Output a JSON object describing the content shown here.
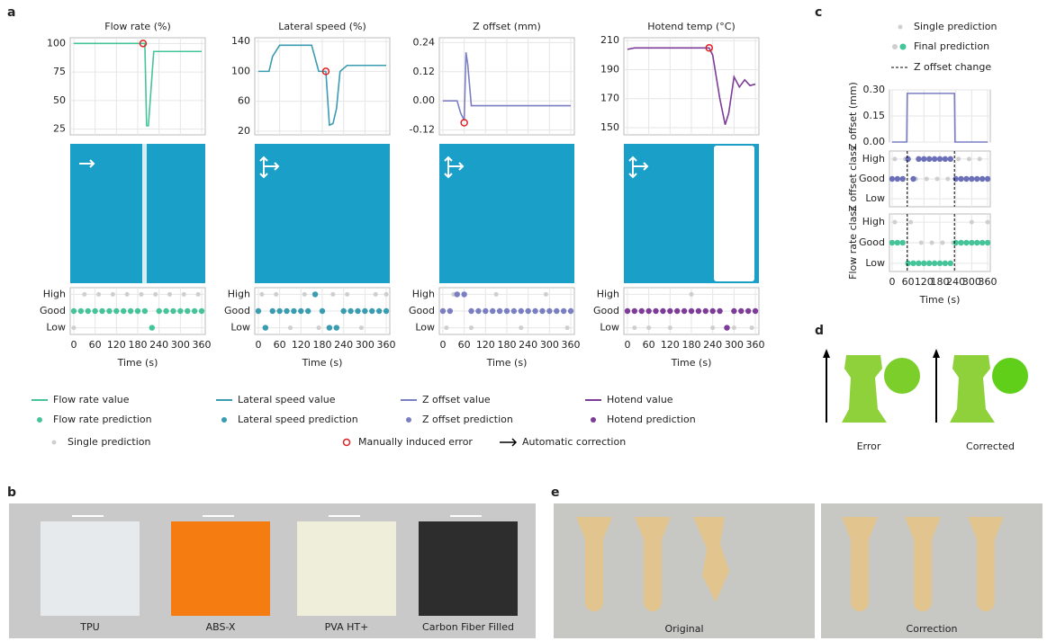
{
  "panel_labels": [
    "a",
    "b",
    "c",
    "d",
    "e"
  ],
  "legend_a": [
    "Single prediction",
    "Manually induced error",
    "Automatic correction"
  ],
  "legend_c": [
    "Single prediction",
    "Final prediction",
    "Z offset change"
  ],
  "b_captions": [
    "TPU",
    "ABS-X",
    "PVA HT+",
    "Carbon Fiber Filled"
  ],
  "d_captions": [
    "Error",
    "Corrected"
  ],
  "e_captions": [
    "Original",
    "Correction"
  ],
  "chart_data": [
    {
      "type": "line",
      "title": "Flow rate (%)",
      "xlim": [
        -10,
        370
      ],
      "xticks": [
        0,
        60,
        120,
        180,
        240,
        300,
        360
      ],
      "show_xtick_labels": false,
      "ylim": [
        20,
        105
      ],
      "yticks": [
        25,
        50,
        75,
        100
      ],
      "grid": true,
      "series": [
        {
          "name": "Flow rate value",
          "color": "#45c49a",
          "x": [
            0,
            195,
            200,
            205,
            210,
            225,
            230,
            360
          ],
          "values": [
            100,
            100,
            100,
            28,
            28,
            93,
            93,
            93
          ]
        }
      ],
      "error_marker": {
        "x": 195,
        "y": 100
      }
    },
    {
      "type": "line",
      "title": "Lateral speed (%)",
      "xlim": [
        -10,
        370
      ],
      "xticks": [
        0,
        60,
        120,
        180,
        240,
        300,
        360
      ],
      "show_xtick_labels": false,
      "ylim": [
        15,
        145
      ],
      "yticks": [
        20,
        60,
        100,
        140
      ],
      "grid": true,
      "series": [
        {
          "name": "Lateral speed value",
          "color": "#3a9cb0",
          "x": [
            0,
            30,
            40,
            60,
            150,
            170,
            190,
            200,
            210,
            220,
            230,
            250,
            280,
            300,
            360
          ],
          "values": [
            100,
            100,
            120,
            135,
            135,
            100,
            100,
            28,
            30,
            50,
            100,
            108,
            108,
            108,
            108
          ]
        }
      ],
      "error_marker": {
        "x": 190,
        "y": 100
      }
    },
    {
      "type": "line",
      "title": "Z offset (mm)",
      "xlim": [
        -10,
        370
      ],
      "xticks": [
        0,
        60,
        120,
        180,
        240,
        300,
        360
      ],
      "show_xtick_labels": false,
      "ylim": [
        -0.14,
        0.26
      ],
      "yticks": [
        -0.12,
        {
          "value": 0,
          "label": "0.00"
        },
        0.12,
        0.24
      ],
      "grid": true,
      "series": [
        {
          "name": "Z offset value",
          "color": "#7a7ec2",
          "x": [
            0,
            40,
            50,
            60,
            65,
            70,
            80,
            360
          ],
          "values": [
            0,
            0,
            -0.05,
            -0.08,
            0.2,
            0.15,
            -0.02,
            -0.02
          ]
        }
      ],
      "error_marker": {
        "x": 60,
        "y": -0.09
      }
    },
    {
      "type": "line",
      "title": "Hotend temp (°C)",
      "xlim": [
        -10,
        370
      ],
      "xticks": [
        0,
        60,
        120,
        180,
        240,
        300,
        360
      ],
      "show_xtick_labels": false,
      "ylim": [
        145,
        212
      ],
      "yticks": [
        150,
        170,
        190,
        210
      ],
      "grid": true,
      "series": [
        {
          "name": "Hotend value",
          "color": "#7d3c98",
          "x": [
            0,
            20,
            230,
            240,
            260,
            275,
            285,
            300,
            315,
            330,
            345,
            360
          ],
          "values": [
            204,
            205,
            205,
            200,
            170,
            152,
            160,
            185,
            178,
            183,
            179,
            180
          ]
        }
      ],
      "error_marker": {
        "x": 230,
        "y": 205
      }
    },
    {
      "type": "class",
      "xlabel": "Time (s)",
      "xlim": [
        -10,
        370
      ],
      "xticks": [
        0,
        60,
        120,
        180,
        240,
        300,
        360
      ],
      "show_xtick_labels": true,
      "ylim": [
        -0.4,
        2.4
      ],
      "yticks": [
        {
          "value": 0,
          "label": "Low"
        },
        {
          "value": 1,
          "label": "Good"
        },
        {
          "value": 2,
          "label": "High"
        }
      ],
      "series": [
        {
          "name": "Flow rate prediction",
          "color": "#45c49a",
          "x": [
            0,
            20,
            40,
            60,
            80,
            100,
            120,
            140,
            160,
            180,
            200,
            220,
            240,
            260,
            280,
            300,
            320,
            340,
            360
          ],
          "values": [
            1,
            1,
            1,
            1,
            1,
            1,
            1,
            1,
            1,
            1,
            1,
            0,
            1,
            1,
            1,
            1,
            1,
            1,
            1
          ]
        }
      ],
      "single": {
        "color": "#cfcfcf",
        "x": [
          0,
          30,
          70,
          110,
          150,
          190,
          230,
          270,
          310,
          350
        ],
        "values": [
          0,
          2,
          2,
          2,
          2,
          2,
          2,
          2,
          2,
          2
        ]
      }
    },
    {
      "type": "class",
      "xlabel": "Time (s)",
      "xlim": [
        -10,
        370
      ],
      "xticks": [
        0,
        60,
        120,
        180,
        240,
        300,
        360
      ],
      "show_xtick_labels": true,
      "ylim": [
        -0.4,
        2.4
      ],
      "yticks": [
        {
          "value": 0,
          "label": "Low"
        },
        {
          "value": 1,
          "label": "Good"
        },
        {
          "value": 2,
          "label": "High"
        }
      ],
      "series": [
        {
          "name": "Lateral speed prediction",
          "color": "#3a9cb0",
          "x": [
            0,
            20,
            40,
            60,
            80,
            100,
            120,
            140,
            160,
            180,
            200,
            220,
            240,
            260,
            280,
            300,
            320,
            340,
            360
          ],
          "values": [
            1,
            0,
            1,
            1,
            1,
            1,
            1,
            1,
            2,
            1,
            0,
            0,
            1,
            1,
            1,
            1,
            1,
            1,
            1
          ]
        }
      ],
      "single": {
        "color": "#cfcfcf",
        "x": [
          10,
          50,
          90,
          130,
          170,
          210,
          250,
          290,
          330,
          360
        ],
        "values": [
          2,
          2,
          0,
          2,
          0,
          2,
          2,
          0,
          2,
          2
        ]
      }
    },
    {
      "type": "class",
      "xlabel": "Time (s)",
      "xlim": [
        -10,
        370
      ],
      "xticks": [
        0,
        60,
        120,
        180,
        240,
        300,
        360
      ],
      "show_xtick_labels": true,
      "ylim": [
        -0.4,
        2.4
      ],
      "yticks": [
        {
          "value": 0,
          "label": "Low"
        },
        {
          "value": 1,
          "label": "Good"
        },
        {
          "value": 2,
          "label": "High"
        }
      ],
      "series": [
        {
          "name": "Z offset prediction",
          "color": "#7a7ec2",
          "x": [
            0,
            20,
            40,
            60,
            80,
            100,
            120,
            140,
            160,
            180,
            200,
            220,
            240,
            260,
            280,
            300,
            320,
            340,
            360
          ],
          "values": [
            1,
            1,
            2,
            2,
            1,
            1,
            1,
            1,
            1,
            1,
            1,
            1,
            1,
            1,
            1,
            1,
            1,
            1,
            1
          ]
        }
      ],
      "single": {
        "color": "#cfcfcf",
        "x": [
          10,
          30,
          80,
          150,
          220,
          290,
          350
        ],
        "values": [
          0,
          2,
          0,
          2,
          0,
          2,
          0
        ]
      }
    },
    {
      "type": "class",
      "xlabel": "Time (s)",
      "xlim": [
        -10,
        370
      ],
      "xticks": [
        0,
        60,
        120,
        180,
        240,
        300,
        360
      ],
      "show_xtick_labels": true,
      "ylim": [
        -0.4,
        2.4
      ],
      "yticks": [
        {
          "value": 0,
          "label": "Low"
        },
        {
          "value": 1,
          "label": "Good"
        },
        {
          "value": 2,
          "label": "High"
        }
      ],
      "series": [
        {
          "name": "Hotend prediction",
          "color": "#7d3c98",
          "x": [
            0,
            20,
            40,
            60,
            80,
            100,
            120,
            140,
            160,
            180,
            200,
            220,
            240,
            260,
            280,
            300,
            320,
            340,
            360
          ],
          "values": [
            1,
            1,
            1,
            1,
            1,
            1,
            1,
            1,
            1,
            1,
            1,
            1,
            1,
            1,
            0,
            1,
            1,
            1,
            1
          ]
        }
      ],
      "single": {
        "color": "#cfcfcf",
        "x": [
          20,
          60,
          120,
          180,
          240,
          300,
          350
        ],
        "values": [
          0,
          0,
          0,
          2,
          0,
          0,
          0
        ]
      }
    },
    {
      "type": "line",
      "ylabel": "Z offset (mm)",
      "xlim": [
        -10,
        370
      ],
      "xticks": [
        0,
        60,
        120,
        180,
        240,
        300,
        360
      ],
      "show_xtick_labels": false,
      "ylim": [
        0,
        0.3
      ],
      "yticks": [
        {
          "value": 0,
          "label": "0.00"
        },
        0.15,
        {
          "value": 0.3,
          "label": "0.30"
        }
      ],
      "grid": true,
      "series": [
        {
          "color": "#7a7ec2",
          "x": [
            0,
            55,
            57,
            235,
            237,
            360
          ],
          "values": [
            0,
            0,
            0.28,
            0.28,
            0,
            0
          ]
        }
      ]
    },
    {
      "type": "class",
      "ylabel": "Z offset class",
      "xlim": [
        -10,
        370
      ],
      "xticks": [
        0,
        60,
        120,
        180,
        240,
        300,
        360
      ],
      "show_xtick_labels": false,
      "ylim": [
        -0.4,
        2.4
      ],
      "yticks": [
        {
          "value": 0,
          "label": "Low"
        },
        {
          "value": 1,
          "label": "Good"
        },
        {
          "value": 2,
          "label": "High"
        }
      ],
      "series": [
        {
          "color": "#6c70b8",
          "x": [
            0,
            20,
            40,
            60,
            80,
            100,
            120,
            140,
            160,
            180,
            200,
            220,
            240,
            260,
            280,
            300,
            320,
            340,
            360
          ],
          "values": [
            1,
            1,
            1,
            2,
            1,
            2,
            2,
            2,
            2,
            2,
            2,
            2,
            1,
            1,
            1,
            1,
            1,
            1,
            1
          ]
        }
      ],
      "single": {
        "color": "#cfcfcf",
        "x": [
          10,
          50,
          90,
          130,
          170,
          210,
          250,
          290,
          330
        ],
        "values": [
          2,
          2,
          1,
          1,
          1,
          1,
          2,
          2,
          2
        ]
      },
      "change_x": [
        57,
        235
      ]
    },
    {
      "type": "class",
      "ylabel": "Flow rate class",
      "xlabel": "Time (s)",
      "xlim": [
        -10,
        370
      ],
      "xticks": [
        0,
        60,
        120,
        180,
        240,
        300,
        360
      ],
      "show_xtick_labels": true,
      "ylim": [
        -0.4,
        2.4
      ],
      "yticks": [
        {
          "value": 0,
          "label": "Low"
        },
        {
          "value": 1,
          "label": "Good"
        },
        {
          "value": 2,
          "label": "High"
        }
      ],
      "series": [
        {
          "color": "#45c49a",
          "x": [
            0,
            20,
            40,
            60,
            80,
            100,
            120,
            140,
            160,
            180,
            200,
            220,
            240,
            260,
            280,
            300,
            320,
            340,
            360
          ],
          "values": [
            1,
            1,
            1,
            0,
            0,
            0,
            0,
            0,
            0,
            0,
            0,
            0,
            1,
            1,
            1,
            1,
            1,
            1,
            1
          ]
        }
      ],
      "single": {
        "color": "#cfcfcf",
        "x": [
          10,
          70,
          110,
          150,
          190,
          230,
          300,
          360
        ],
        "values": [
          2,
          2,
          1,
          1,
          1,
          1,
          2,
          2
        ]
      },
      "change_x": [
        57,
        235
      ]
    }
  ]
}
